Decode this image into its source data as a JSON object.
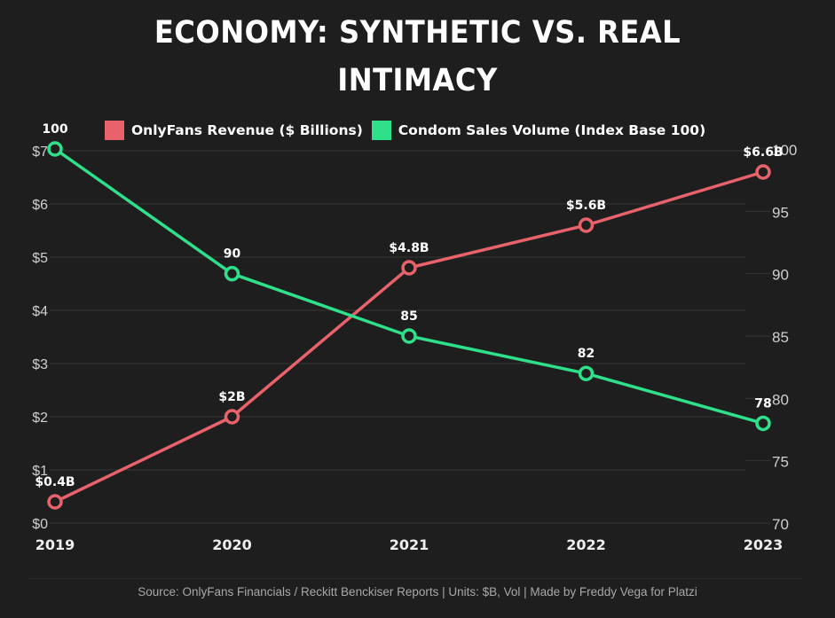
{
  "page": {
    "title_line1": "ECONOMY: SYNTHETIC VS. REAL",
    "title_line2": "INTIMACY",
    "source": "Source: OnlyFans Financials / Reckitt Benckiser Reports | Units: $B, Vol | Made by Freddy Vega for Platzi"
  },
  "colors": {
    "background": "#1e1e1e",
    "revenue": "#e8626b",
    "condom": "#2ee08a",
    "grid": "#363636",
    "tick_text": "#cfcfcf",
    "label_text": "#ffffff"
  },
  "chart_data": {
    "type": "line",
    "title": "ECONOMY: SYNTHETIC VS. REAL INTIMACY",
    "x": [
      "2019",
      "2020",
      "2021",
      "2022",
      "2023"
    ],
    "legend_position": "top",
    "grid": true,
    "series": [
      {
        "name": "OnlyFans Revenue ($ Billions)",
        "axis": "left",
        "color": "#e8626b",
        "values": [
          0.4,
          2.0,
          4.8,
          5.6,
          6.6
        ],
        "labels": [
          "$0.4B",
          "$2B",
          "$4.8B",
          "$5.6B",
          "$6.6B"
        ]
      },
      {
        "name": "Condom Sales Volume (Index Base 100)",
        "axis": "right",
        "color": "#2ee08a",
        "values": [
          100,
          90,
          85,
          82,
          78
        ],
        "labels": [
          "100",
          "90",
          "85",
          "82",
          "78"
        ]
      }
    ],
    "y_left": {
      "label": "",
      "ylim": [
        0,
        7
      ],
      "ticks": [
        0,
        1,
        2,
        3,
        4,
        5,
        6,
        7
      ],
      "tick_labels": [
        "$0",
        "$1",
        "$2",
        "$3",
        "$4",
        "$5",
        "$6",
        "$7"
      ]
    },
    "y_right": {
      "label": "",
      "ylim": [
        70,
        100
      ],
      "ticks": [
        70,
        75,
        80,
        85,
        90,
        95,
        100
      ],
      "tick_labels": [
        "70",
        "75",
        "80",
        "85",
        "90",
        "95",
        "100"
      ]
    },
    "xlabel": "",
    "footnote": "Source: OnlyFans Financials / Reckitt Benckiser Reports | Units: $B, Vol | Made by Freddy Vega for Platzi"
  }
}
